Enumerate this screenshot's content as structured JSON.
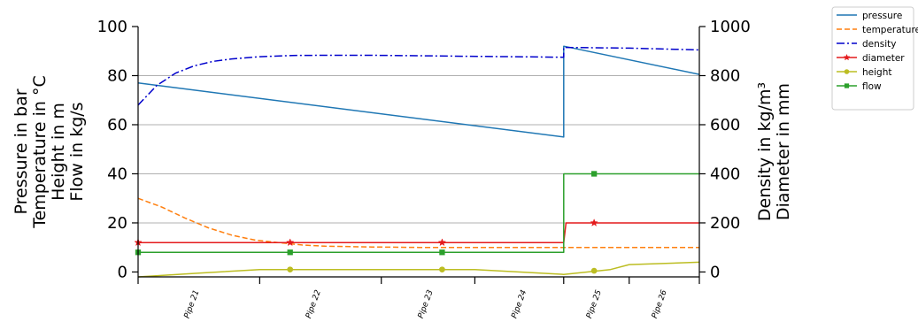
{
  "chart_data": {
    "type": "line",
    "x_range": [
      0,
      12
    ],
    "left_axis": {
      "labels": [
        "Pressure in bar",
        "Temperature in °C",
        "Height in m",
        "Flow in kg/s"
      ],
      "ylim": [
        -2,
        100
      ],
      "ticks": [
        0,
        20,
        40,
        60,
        80,
        100
      ]
    },
    "right_axis": {
      "labels": [
        "Density in kg/m³",
        "Diameter in mm"
      ],
      "ylim": [
        -20,
        1000
      ],
      "ticks": [
        0,
        200,
        400,
        600,
        800,
        1000
      ]
    },
    "pipe_labels": [
      {
        "name": "Pipe 21",
        "x": 1.3
      },
      {
        "name": "Pipe 22",
        "x": 3.9
      },
      {
        "name": "Pipe 23",
        "x": 6.3
      },
      {
        "name": "Pipe 24",
        "x": 8.3
      },
      {
        "name": "Pipe 25",
        "x": 9.9
      },
      {
        "name": "Pipe 26",
        "x": 11.3
      }
    ],
    "pipe_boundaries": [
      0,
      2.6,
      5.2,
      7.2,
      9.1,
      10.5,
      12
    ],
    "grid_y": [
      20,
      40,
      60,
      80
    ],
    "series": [
      {
        "name": "pressure",
        "axis": "left",
        "color": "#1f77b4",
        "dash": "",
        "marker": "none",
        "points": [
          [
            0,
            77
          ],
          [
            9.1,
            55
          ],
          [
            9.1,
            92
          ],
          [
            12,
            80.5
          ]
        ]
      },
      {
        "name": "temperature",
        "axis": "left",
        "color": "#ff7f0e",
        "dash": "6,3",
        "marker": "none",
        "points": [
          [
            0,
            30
          ],
          [
            0.5,
            26.5
          ],
          [
            1,
            22
          ],
          [
            1.5,
            18
          ],
          [
            2,
            15
          ],
          [
            2.5,
            13
          ],
          [
            3,
            12
          ],
          [
            3.5,
            11
          ],
          [
            4,
            10.5
          ],
          [
            5,
            10.2
          ],
          [
            6,
            10
          ],
          [
            9.1,
            10
          ],
          [
            12,
            10
          ]
        ]
      },
      {
        "name": "density",
        "axis": "right",
        "color": "#0000cc",
        "dash": "9,3,2,3",
        "marker": "none",
        "points": [
          [
            0,
            680
          ],
          [
            0.4,
            760
          ],
          [
            0.8,
            810
          ],
          [
            1.2,
            840
          ],
          [
            1.6,
            858
          ],
          [
            2,
            868
          ],
          [
            2.6,
            877
          ],
          [
            3.3,
            882
          ],
          [
            4,
            883
          ],
          [
            5,
            883
          ],
          [
            6,
            881
          ],
          [
            7,
            879
          ],
          [
            8,
            877
          ],
          [
            9.1,
            875
          ],
          [
            9.1,
            915
          ],
          [
            10.5,
            912
          ],
          [
            12,
            905
          ]
        ]
      },
      {
        "name": "diameter",
        "axis": "right",
        "color": "#e41a1c",
        "dash": "",
        "marker": "star",
        "points": [
          [
            0,
            120
          ],
          [
            9.1,
            120
          ],
          [
            9.15,
            200
          ],
          [
            12,
            200
          ]
        ],
        "markers": [
          [
            0,
            120
          ],
          [
            3.25,
            120
          ],
          [
            6.5,
            120
          ],
          [
            9.75,
            200
          ]
        ]
      },
      {
        "name": "height",
        "axis": "left",
        "color": "#bcbd22",
        "dash": "",
        "marker": "circle",
        "points": [
          [
            0,
            -2
          ],
          [
            1.3,
            -0.5
          ],
          [
            2.6,
            1
          ],
          [
            5.2,
            1
          ],
          [
            6.5,
            1
          ],
          [
            7.2,
            1
          ],
          [
            9.1,
            -1
          ],
          [
            9.6,
            0
          ],
          [
            10.1,
            1
          ],
          [
            10.5,
            3
          ],
          [
            12,
            4
          ]
        ],
        "markers": [
          [
            3.25,
            1
          ],
          [
            6.5,
            1
          ],
          [
            9.75,
            0.5
          ]
        ]
      },
      {
        "name": "flow",
        "axis": "left",
        "color": "#2ca02c",
        "dash": "",
        "marker": "square",
        "points": [
          [
            0,
            8
          ],
          [
            9.1,
            8
          ],
          [
            9.1,
            40
          ],
          [
            12,
            40
          ]
        ],
        "markers": [
          [
            0,
            8
          ],
          [
            3.25,
            8
          ],
          [
            6.5,
            8
          ],
          [
            9.75,
            40
          ]
        ]
      }
    ],
    "legend": {
      "placement": "outside-top-right",
      "entries": [
        "pressure",
        "temperature",
        "density",
        "diameter",
        "height",
        "flow"
      ]
    }
  }
}
